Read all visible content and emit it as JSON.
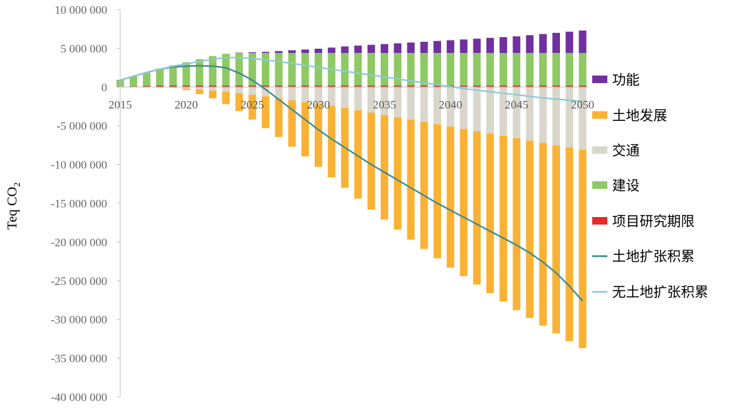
{
  "chart_data": {
    "type": "bar",
    "stacked": true,
    "ylabel_main": "Teq CO",
    "ylabel_sub": "2",
    "ylim": [
      -40000000,
      10000000
    ],
    "y_ticks": [
      10000000,
      5000000,
      0,
      -5000000,
      -10000000,
      -15000000,
      -20000000,
      -25000000,
      -30000000,
      -35000000,
      -40000000
    ],
    "y_tick_labels": [
      "10 000 000",
      "5 000 000",
      "0",
      "-5 000 000",
      "-10 000 000",
      "-15 000 000",
      "-20 000 000",
      "-25 000 000",
      "-30 000 000",
      "-35 000 000",
      "-40 000 000"
    ],
    "x_ticks": [
      2015,
      2020,
      2025,
      2030,
      2035,
      2040,
      2045,
      2050
    ],
    "x_tick_labels": [
      "2015",
      "2020",
      "2025",
      "2030",
      "2035",
      "2040",
      "2045",
      "2050"
    ],
    "x": [
      2015,
      2016,
      2017,
      2018,
      2019,
      2020,
      2021,
      2022,
      2023,
      2024,
      2025,
      2026,
      2027,
      2028,
      2029,
      2030,
      2031,
      2032,
      2033,
      2034,
      2035,
      2036,
      2037,
      2038,
      2039,
      2040,
      2041,
      2042,
      2043,
      2044,
      2045,
      2046,
      2047,
      2048,
      2049,
      2050
    ],
    "series": [
      {
        "name": "功能",
        "kind": "bar",
        "color": "#7030a0",
        "values": [
          0,
          0,
          0,
          0,
          0,
          0,
          0,
          0,
          0,
          50000,
          100000,
          150000,
          250000,
          350000,
          450000,
          550000,
          700000,
          850000,
          950000,
          1050000,
          1150000,
          1250000,
          1350000,
          1450000,
          1550000,
          1650000,
          1750000,
          1850000,
          1950000,
          2050000,
          2150000,
          2300000,
          2450000,
          2600000,
          2750000,
          2900000
        ]
      },
      {
        "name": "土地发展",
        "kind": "bar",
        "color": "#f9b233",
        "values": [
          0,
          0,
          0,
          0,
          0,
          -200000,
          -600000,
          -1000000,
          -1600000,
          -2300000,
          -3200000,
          -4100000,
          -5000000,
          -6000000,
          -7000000,
          -8100000,
          -9200000,
          -10300000,
          -11400000,
          -12500000,
          -13500000,
          -14500000,
          -15500000,
          -16400000,
          -17300000,
          -18200000,
          -19000000,
          -19800000,
          -20600000,
          -21400000,
          -22200000,
          -22900000,
          -23600000,
          -24300000,
          -25000000,
          -25600000
        ]
      },
      {
        "name": "交通",
        "kind": "bar",
        "color": "#d9d7cc",
        "values": [
          0,
          0,
          0,
          0,
          -100000,
          -200000,
          -300000,
          -450000,
          -600000,
          -800000,
          -1000000,
          -1200000,
          -1450000,
          -1700000,
          -1950000,
          -2200000,
          -2450000,
          -2700000,
          -3000000,
          -3300000,
          -3600000,
          -3900000,
          -4200000,
          -4500000,
          -4800000,
          -5100000,
          -5400000,
          -5700000,
          -6000000,
          -6300000,
          -6600000,
          -6900000,
          -7200000,
          -7500000,
          -7800000,
          -8100000
        ]
      },
      {
        "name": "建设",
        "kind": "bar",
        "color": "#8ec963",
        "values": [
          900000,
          1300000,
          1700000,
          2200000,
          2600000,
          3000000,
          3400000,
          3800000,
          4100000,
          4200000,
          4200000,
          4200000,
          4200000,
          4200000,
          4200000,
          4200000,
          4200000,
          4200000,
          4200000,
          4200000,
          4200000,
          4200000,
          4200000,
          4200000,
          4200000,
          4200000,
          4200000,
          4200000,
          4200000,
          4200000,
          4200000,
          4200000,
          4200000,
          4200000,
          4200000,
          4200000
        ]
      },
      {
        "name": "项目研究期限",
        "kind": "bar",
        "color": "#e8292a",
        "values": [
          50000,
          100000,
          150000,
          200000,
          200000,
          200000,
          200000,
          200000,
          200000,
          200000,
          200000,
          200000,
          200000,
          200000,
          200000,
          200000,
          200000,
          200000,
          200000,
          200000,
          200000,
          200000,
          200000,
          200000,
          200000,
          200000,
          200000,
          200000,
          200000,
          200000,
          200000,
          200000,
          200000,
          200000,
          200000,
          200000
        ]
      },
      {
        "name": "土地扩张积累",
        "kind": "line",
        "color": "#3d8a8d",
        "values": [
          900000,
          1400000,
          1900000,
          2300000,
          2600000,
          2700000,
          2750000,
          2700000,
          2500000,
          1800000,
          900000,
          -300000,
          -1600000,
          -2900000,
          -4200000,
          -5500000,
          -6700000,
          -7800000,
          -8900000,
          -10000000,
          -11000000,
          -12000000,
          -13000000,
          -14000000,
          -15000000,
          -15900000,
          -16800000,
          -17700000,
          -18600000,
          -19500000,
          -20400000,
          -21400000,
          -22600000,
          -24000000,
          -25700000,
          -27600000
        ]
      },
      {
        "name": "无土地扩张积累",
        "kind": "line",
        "color": "#8fc8d8",
        "values": [
          900000,
          1400000,
          1900000,
          2300000,
          2700000,
          3000000,
          3300000,
          3600000,
          3800000,
          3800000,
          3700000,
          3500000,
          3300000,
          3050000,
          2800000,
          2550000,
          2300000,
          2050000,
          1800000,
          1550000,
          1300000,
          1050000,
          800000,
          550000,
          300000,
          50000,
          -200000,
          -400000,
          -600000,
          -800000,
          -1000000,
          -1200000,
          -1400000,
          -1550000,
          -1700000,
          -1850000
        ]
      }
    ],
    "legend": {
      "placement": "right",
      "order": [
        "功能",
        "土地发展",
        "交通",
        "建设",
        "项目研究期限",
        "土地扩张积累",
        "无土地扩张积累"
      ]
    },
    "grid": false
  }
}
